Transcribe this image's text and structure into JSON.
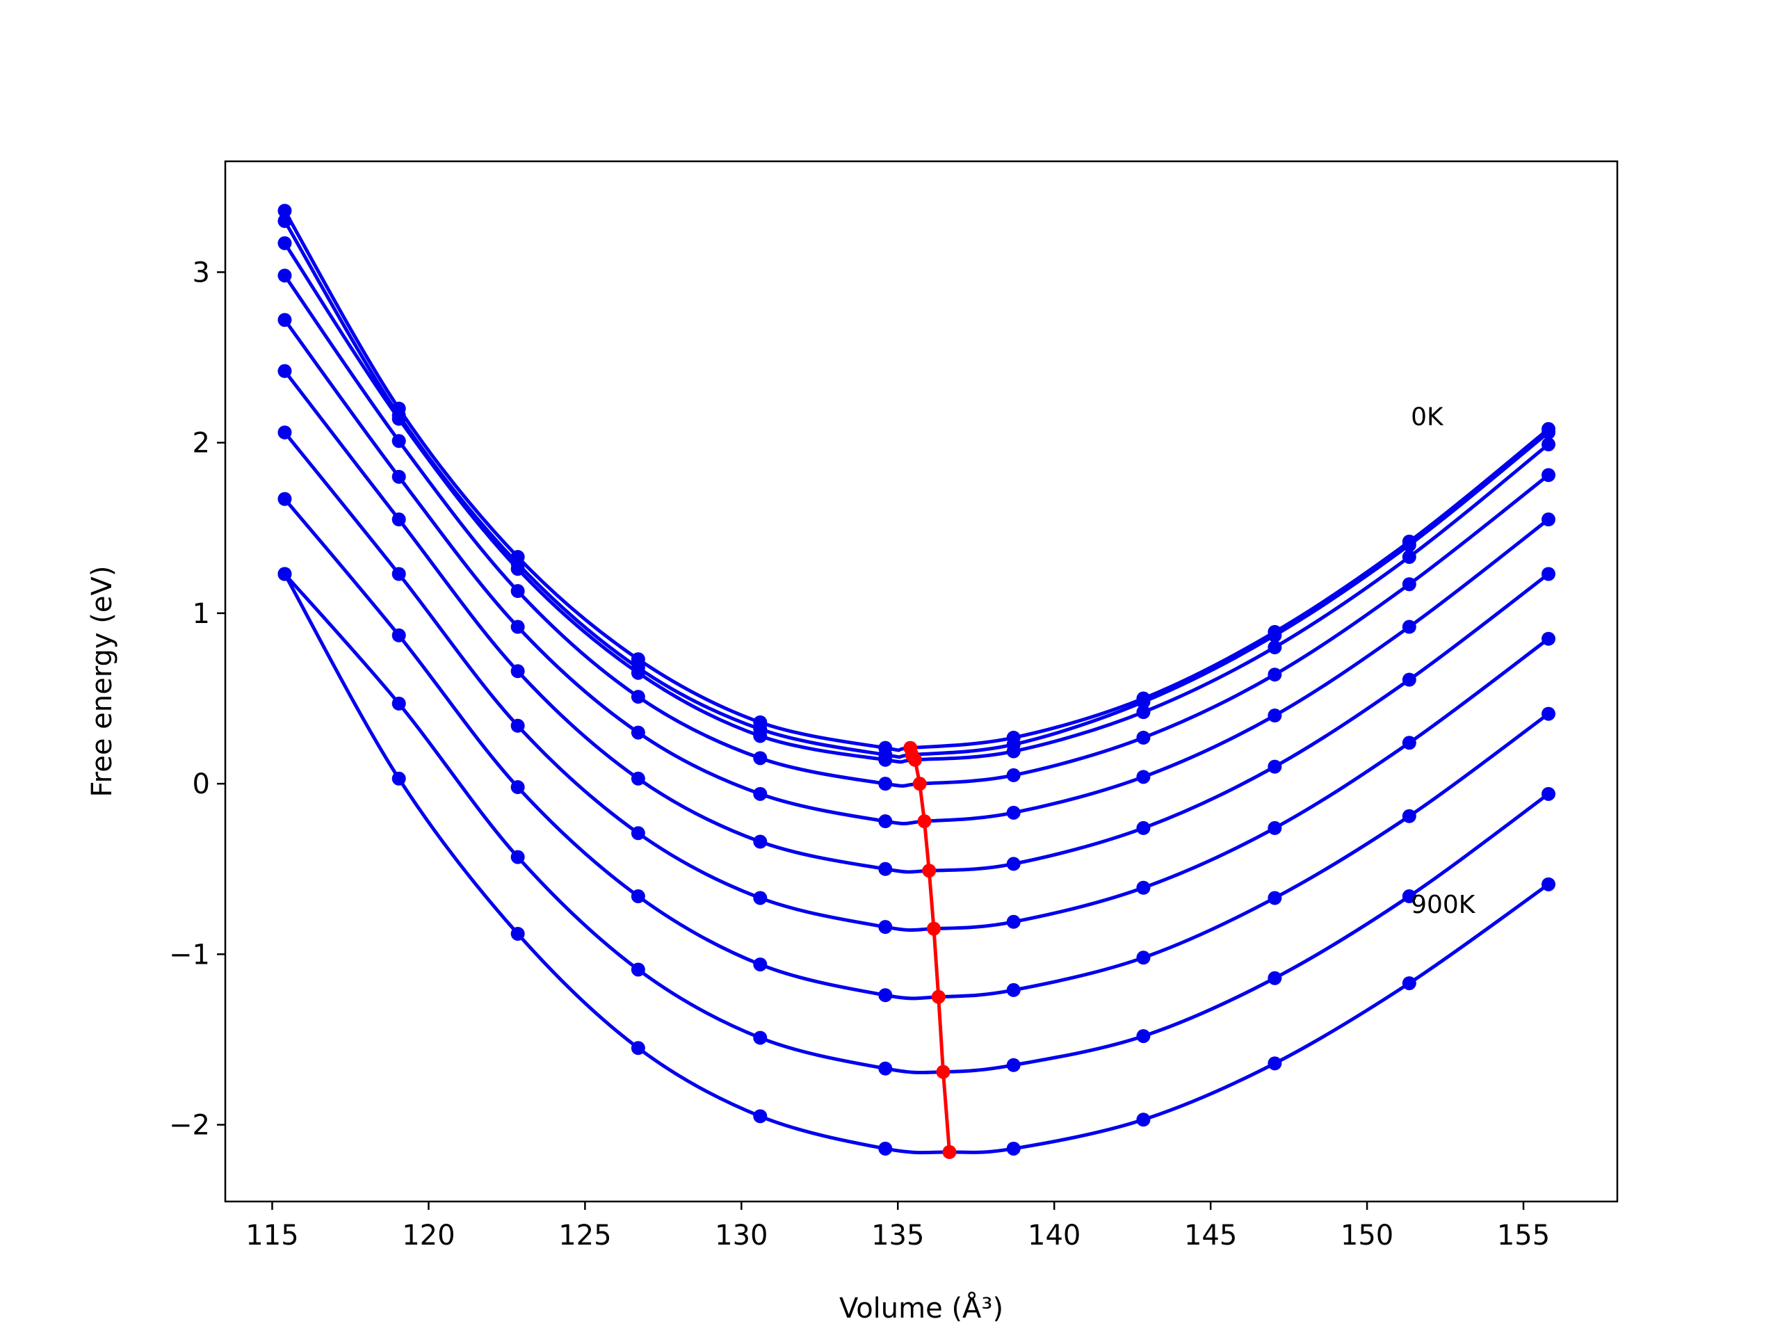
{
  "chart_data": {
    "type": "line",
    "xlabel": "Volume (Å³)",
    "ylabel": "Free energy (eV)",
    "xlim": [
      113.5,
      158
    ],
    "ylim": [
      -2.45,
      3.65
    ],
    "xticks": [
      115,
      120,
      125,
      130,
      135,
      140,
      145,
      150,
      155
    ],
    "yticks": [
      -2,
      -1,
      0,
      1,
      2,
      3
    ],
    "xtick_labels": [
      "115",
      "120",
      "125",
      "130",
      "135",
      "140",
      "145",
      "150",
      "155"
    ],
    "ytick_labels": [
      "−2",
      "−1",
      "0",
      "1",
      "2",
      "3"
    ],
    "annotations": [
      {
        "text": "0K",
        "x": 151.4,
        "y": 2.16
      },
      {
        "text": "900K",
        "x": 151.4,
        "y": -0.7
      }
    ],
    "colors": {
      "curves": "#0000ee",
      "minima": "#ff0000"
    },
    "x": [
      115.4,
      119.05,
      122.85,
      126.7,
      130.6,
      134.6,
      138.7,
      142.85,
      147.05,
      151.35,
      155.8
    ],
    "series": [
      {
        "values": [
          3.36,
          2.2,
          1.33,
          0.73,
          0.36,
          0.21,
          0.27,
          0.5,
          0.89,
          1.42,
          2.08
        ],
        "min": [
          135.4,
          0.21
        ]
      },
      {
        "values": [
          3.3,
          2.16,
          1.29,
          0.68,
          0.32,
          0.17,
          0.23,
          0.48,
          0.87,
          1.4,
          2.06
        ],
        "min": [
          135.45,
          0.17
        ]
      },
      {
        "values": [
          3.17,
          2.14,
          1.26,
          0.65,
          0.28,
          0.14,
          0.19,
          0.42,
          0.8,
          1.33,
          1.99
        ],
        "min": [
          135.55,
          0.14
        ]
      },
      {
        "values": [
          2.98,
          2.01,
          1.13,
          0.51,
          0.15,
          0.0,
          0.05,
          0.27,
          0.64,
          1.17,
          1.81
        ],
        "min": [
          135.7,
          0.0
        ]
      },
      {
        "values": [
          2.72,
          1.8,
          0.92,
          0.3,
          -0.06,
          -0.22,
          -0.17,
          0.04,
          0.4,
          0.92,
          1.55
        ],
        "min": [
          135.85,
          -0.22
        ]
      },
      {
        "values": [
          2.42,
          1.55,
          0.66,
          0.03,
          -0.34,
          -0.5,
          -0.47,
          -0.26,
          0.1,
          0.61,
          1.23
        ],
        "min": [
          136.0,
          -0.51
        ]
      },
      {
        "values": [
          2.06,
          1.23,
          0.34,
          -0.29,
          -0.67,
          -0.84,
          -0.81,
          -0.61,
          -0.26,
          0.24,
          0.85
        ],
        "min": [
          136.15,
          -0.85
        ]
      },
      {
        "values": [
          1.67,
          0.87,
          -0.02,
          -0.66,
          -1.06,
          -1.24,
          -1.21,
          -1.02,
          -0.67,
          -0.19,
          0.41
        ],
        "min": [
          136.3,
          -1.25
        ]
      },
      {
        "values": [
          1.23,
          0.47,
          -0.43,
          -1.09,
          -1.49,
          -1.67,
          -1.65,
          -1.48,
          -1.14,
          -0.66,
          -0.06
        ],
        "min": [
          136.45,
          -1.69
        ]
      },
      {
        "values": [
          1.23,
          0.03,
          -0.88,
          -1.55,
          -1.95,
          -2.14,
          -2.14,
          -1.97,
          -1.64,
          -1.17,
          -0.59
        ],
        "min": [
          136.65,
          -2.16
        ]
      }
    ]
  }
}
